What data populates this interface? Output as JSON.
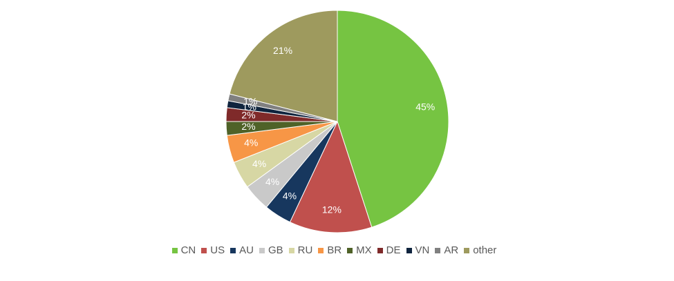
{
  "chart_data": {
    "type": "pie",
    "start_angle_deg": 0,
    "direction": "clockwise",
    "legend_position": "bottom",
    "slices": [
      {
        "label": "CN",
        "value": 45,
        "display": "45%",
        "color": "#76C442"
      },
      {
        "label": "US",
        "value": 12,
        "display": "12%",
        "color": "#C0504D"
      },
      {
        "label": "AU",
        "value": 4,
        "display": "4%",
        "color": "#17375E"
      },
      {
        "label": "GB",
        "value": 4,
        "display": "4%",
        "color": "#C9C9C9"
      },
      {
        "label": "RU",
        "value": 4,
        "display": "4%",
        "color": "#D7D7A4"
      },
      {
        "label": "BR",
        "value": 4,
        "display": "4%",
        "color": "#F79646"
      },
      {
        "label": "MX",
        "value": 2,
        "display": "2%",
        "color": "#4F6228"
      },
      {
        "label": "DE",
        "value": 2,
        "display": "2%",
        "color": "#7F2A2A"
      },
      {
        "label": "VN",
        "value": 1,
        "display": "1%",
        "color": "#0F243E"
      },
      {
        "label": "AR",
        "value": 1,
        "display": "1%",
        "color": "#808080"
      },
      {
        "label": "other",
        "value": 21,
        "display": "21%",
        "color": "#9E9A5E"
      }
    ]
  }
}
